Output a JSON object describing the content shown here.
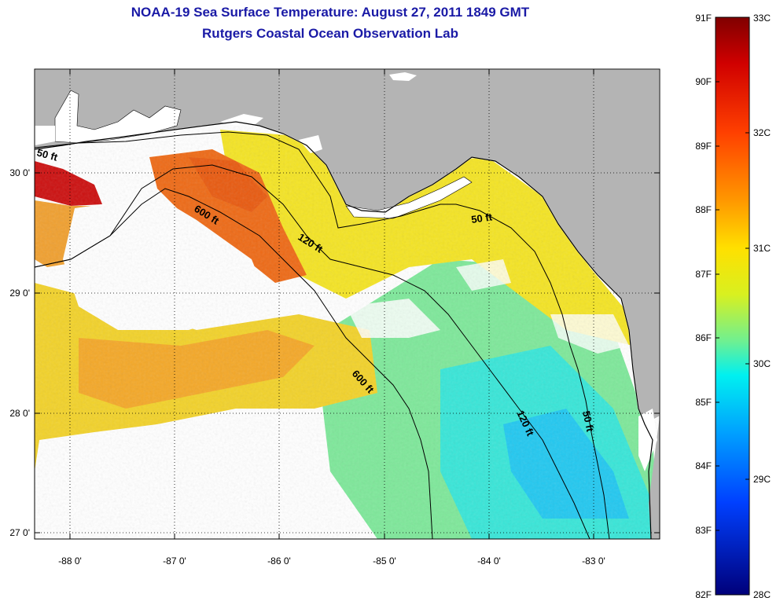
{
  "title": "NOAA-19 Sea Surface Temperature:  August 27, 2011 1849 GMT",
  "subtitle": "Rutgers Coastal Ocean Observation Lab",
  "map": {
    "longitude_labels": [
      "-88 0'",
      "-87 0'",
      "-86 0'",
      "-85 0'",
      "-84 0'",
      "-83 0'"
    ],
    "latitude_labels": [
      "30 0'",
      "29 0'",
      "28 0'",
      "27 0'"
    ],
    "longitude_range": [
      -88.33,
      -82.6
    ],
    "latitude_range": [
      26.95,
      30.85
    ],
    "contour_labels": [
      {
        "text": "50 ft"
      },
      {
        "text": "600 ft"
      },
      {
        "text": "120 ft"
      },
      {
        "text": "50 ft"
      },
      {
        "text": "600 ft"
      },
      {
        "text": "120 ft"
      },
      {
        "text": "50 ft"
      }
    ],
    "colors": {
      "land": "#b4b4b4",
      "cloud": "#ffffff",
      "contour": "#000000",
      "warm": "#ee5a10",
      "mid": "#f8dc1c",
      "cool": "#2ee4e0",
      "hot": "#b00000"
    }
  },
  "colorbar": {
    "fahrenheit_labels": [
      "91F",
      "90F",
      "89F",
      "88F",
      "87F",
      "86F",
      "85F",
      "84F",
      "83F",
      "82F"
    ],
    "celsius_labels": [
      "33C",
      "32C",
      "31C",
      "30C",
      "29C",
      "28C"
    ],
    "stops": [
      "#800000",
      "#ff0000",
      "#ff8000",
      "#ffff00",
      "#80ff80",
      "#00ffff",
      "#0080ff",
      "#0000ff",
      "#000080"
    ]
  }
}
